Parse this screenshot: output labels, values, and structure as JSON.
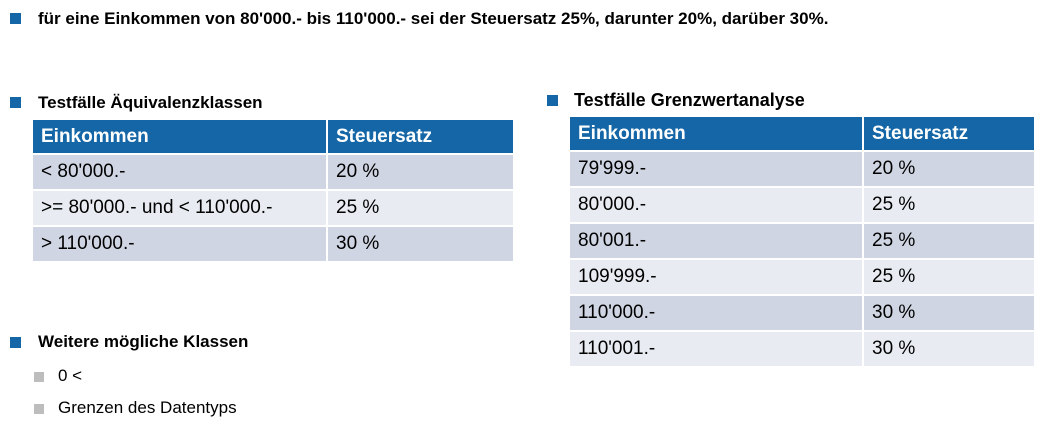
{
  "rule_text": "für eine Einkommen von 80'000.- bis  110'000.- sei der Steuersatz 25%, darunter 20%, darüber 30%.",
  "equivalence": {
    "heading": "Testfälle Äquivalenzklassen",
    "headers": [
      "Einkommen",
      "Steuersatz"
    ],
    "rows": [
      [
        "< 80'000.-",
        "20 %"
      ],
      [
        ">= 80'000.- und < 110'000.-",
        "25 %"
      ],
      [
        "> 110'000.-",
        "30 %"
      ]
    ]
  },
  "boundary": {
    "heading": "Testfälle Grenzwertanalyse",
    "headers": [
      "Einkommen",
      "Steuersatz"
    ],
    "rows": [
      [
        "79'999.-",
        "20 %"
      ],
      [
        "80'000.-",
        "25 %"
      ],
      [
        "80'001.-",
        "25 %"
      ],
      [
        "109'999.-",
        "25 %"
      ],
      [
        "110'000.-",
        "30 %"
      ],
      [
        "110'001.-",
        "30 %"
      ]
    ]
  },
  "more_classes": {
    "heading": "Weitere mögliche Klassen",
    "items": [
      "0 <",
      "Grenzen des Datentyps"
    ]
  }
}
